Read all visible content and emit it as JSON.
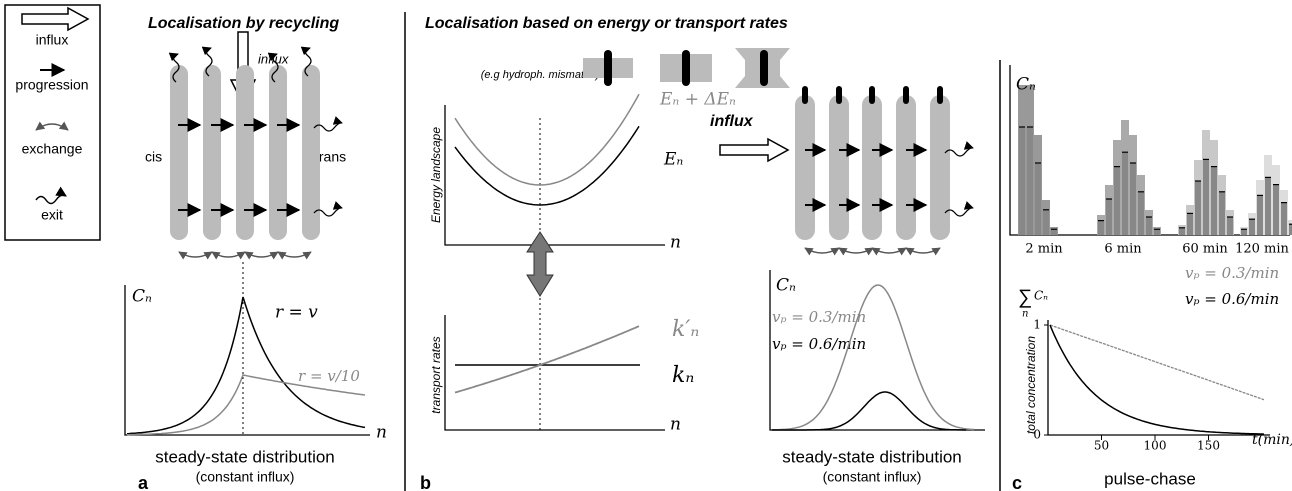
{
  "legend": {
    "items": [
      "influx",
      "progression",
      "exchange",
      "exit"
    ]
  },
  "panel_a": {
    "title": "Localisation by recycling",
    "influx": "influx",
    "cis": "cis",
    "trans": "trans",
    "y_label": "Cₙ",
    "x_label": "n",
    "curve_labels": [
      "r = v",
      "r = v/10"
    ],
    "caption": "steady-state distribution",
    "subcaption": "(constant influx)",
    "letter": "a"
  },
  "panel_b": {
    "title": "Localisation based on energy or transport rates",
    "example": "(e.g hydroph. mismatch)",
    "energy_axis": "Energy landscape",
    "energy_labels": [
      "Eₙ + ΔEₙ",
      "Eₙ"
    ],
    "energy_x_label": "n",
    "rates_axis": "transport rates",
    "rate_labels": [
      "k′ₙ",
      "kₙ"
    ],
    "rates_x_label": "n",
    "influx": "influx",
    "y_label": "Cₙ",
    "speed_labels": [
      "vₚ = 0.3/min",
      "vₚ = 0.6/min"
    ],
    "caption": "steady-state distribution",
    "subcaption": "(constant influx)",
    "letter": "b"
  },
  "panel_c": {
    "y_label": "Cₙ",
    "times": [
      "2 min",
      "6 min",
      "60 min",
      "120 min"
    ],
    "speed_labels": [
      "vₚ = 0.3/min",
      "vₚ = 0.6/min"
    ],
    "sum_label": {
      "symbol": "∑",
      "index": "n",
      "term": "Cₙ"
    },
    "y_axis": "total concentration",
    "yticks": [
      0,
      1
    ],
    "xticks": [
      50,
      100,
      150
    ],
    "x_label": "t(min)",
    "caption": "pulse-chase",
    "letter": "c"
  }
}
